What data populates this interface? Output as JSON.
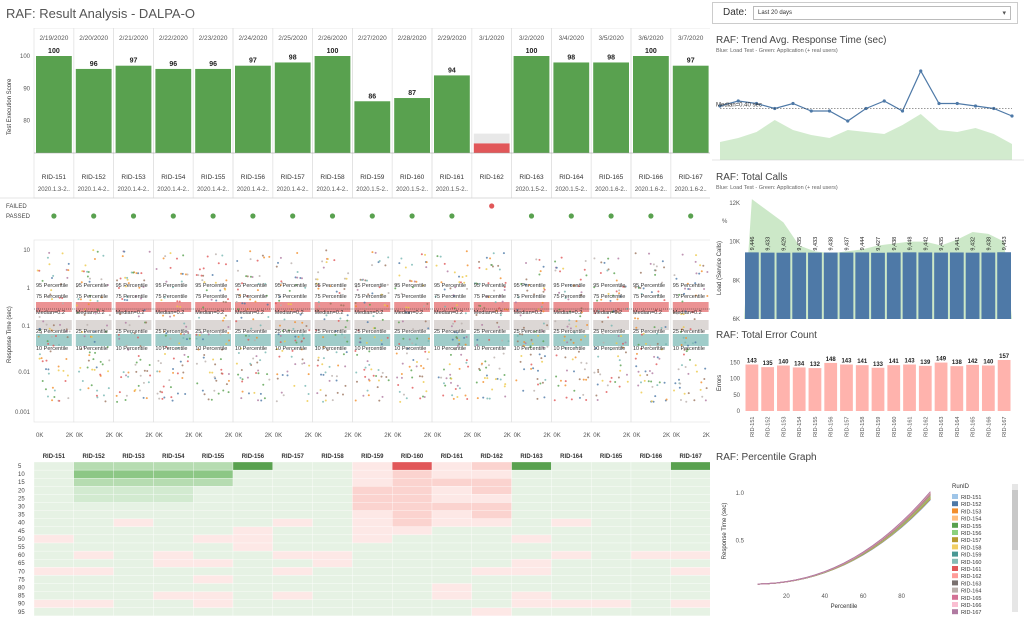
{
  "header": {
    "title": "RAF: Result Analysis - DALPA-O",
    "date_label": "Date:",
    "date_value": "Last 20 days"
  },
  "runs": [
    {
      "date": "2/19/2020",
      "id": "RID-151",
      "ver": "2020.1.3-2..",
      "score": 100,
      "status": "passed",
      "calls": 9446,
      "errors": 143
    },
    {
      "date": "2/20/2020",
      "id": "RID-152",
      "ver": "2020.1.4-2..",
      "score": 96,
      "status": "passed",
      "calls": 9433,
      "errors": 135
    },
    {
      "date": "2/21/2020",
      "id": "RID-153",
      "ver": "2020.1.4-2..",
      "score": 97,
      "status": "passed",
      "calls": 9429,
      "errors": 140
    },
    {
      "date": "2/22/2020",
      "id": "RID-154",
      "ver": "2020.1.4-2..",
      "score": 96,
      "status": "passed",
      "calls": 9435,
      "errors": 134
    },
    {
      "date": "2/23/2020",
      "id": "RID-155",
      "ver": "2020.1.4-2..",
      "score": 96,
      "status": "passed",
      "calls": 9433,
      "errors": 132
    },
    {
      "date": "2/24/2020",
      "id": "RID-156",
      "ver": "2020.1.4-2..",
      "score": 97,
      "status": "passed",
      "calls": 9438,
      "errors": 148
    },
    {
      "date": "2/25/2020",
      "id": "RID-157",
      "ver": "2020.1.4-2..",
      "score": 98,
      "status": "passed",
      "calls": 9437,
      "errors": 143
    },
    {
      "date": "2/26/2020",
      "id": "RID-158",
      "ver": "2020.1.4-2..",
      "score": 100,
      "status": "passed",
      "calls": 9444,
      "errors": 141
    },
    {
      "date": "2/27/2020",
      "id": "RID-159",
      "ver": "2020.1.5-2..",
      "score": 86,
      "status": "passed",
      "calls": 9427,
      "errors": 133
    },
    {
      "date": "2/28/2020",
      "id": "RID-160",
      "ver": "2020.1.5-2..",
      "score": 87,
      "status": "passed",
      "calls": 9438,
      "errors": 141
    },
    {
      "date": "2/29/2020",
      "id": "RID-161",
      "ver": "2020.1.5-2..",
      "score": 94,
      "status": "passed",
      "calls": 9448,
      "errors": 143
    },
    {
      "date": "3/1/2020",
      "id": "RID-162",
      "ver": "",
      "score": 73,
      "status": "failed",
      "calls": 9442,
      "errors": 139
    },
    {
      "date": "3/2/2020",
      "id": "RID-163",
      "ver": "2020.1.5-2..",
      "score": 100,
      "status": "passed",
      "calls": 9435,
      "errors": 149
    },
    {
      "date": "3/4/2020",
      "id": "RID-164",
      "ver": "2020.1.5-2..",
      "score": 98,
      "status": "passed",
      "calls": 9441,
      "errors": 138
    },
    {
      "date": "3/5/2020",
      "id": "RID-165",
      "ver": "2020.1.6-2..",
      "score": 98,
      "status": "passed",
      "calls": 9432,
      "errors": 142
    },
    {
      "date": "3/6/2020",
      "id": "RID-166",
      "ver": "2020.1.6-2..",
      "score": 100,
      "status": "passed",
      "calls": 9438,
      "errors": 140
    },
    {
      "date": "3/7/2020",
      "id": "RID-167",
      "ver": "2020.1.6-2..",
      "score": 97,
      "status": "passed",
      "calls": 9453,
      "errors": 157
    }
  ],
  "score_chart": {
    "ylabel": "Test Execution Score",
    "yticks": [
      80,
      90,
      100
    ],
    "status_labels": [
      "FAILED",
      "PASSED"
    ]
  },
  "scatter": {
    "ylabel": "Response Time (sec)",
    "yticks": [
      "10",
      "1",
      "0.1",
      "0.01",
      "0.001"
    ],
    "xticks": [
      "0K",
      "2K"
    ],
    "bands": [
      "95 Percentile",
      "75 Percentile",
      "Median=0.2",
      "25 Percentile",
      "10 Percentile"
    ]
  },
  "heatmap": {
    "rows": [
      5,
      10,
      15,
      20,
      25,
      30,
      35,
      40,
      45,
      50,
      55,
      60,
      65,
      70,
      75,
      80,
      85,
      90,
      95
    ]
  },
  "trend": {
    "title": "RAF: Trend Avg. Response Time (sec)",
    "subtitle": "Blue: Load Test - Green: Application (+ real users)",
    "median_label": "Median=0.40 sec",
    "values": [
      0.41,
      0.43,
      0.42,
      0.4,
      0.42,
      0.39,
      0.39,
      0.35,
      0.4,
      0.43,
      0.39,
      0.55,
      0.42,
      0.42,
      0.41,
      0.4,
      0.37
    ]
  },
  "total_calls": {
    "title": "RAF: Total Calls",
    "subtitle": "Blue: Load Test - Green: Application (+ real users)",
    "ylabel": "Load (Service Calls)",
    "yticks": [
      "12K",
      "10K",
      "8K",
      "6K"
    ],
    "pct": "%"
  },
  "errors": {
    "title": "RAF: Total Error Count",
    "ylabel": "Errors",
    "yticks": [
      150,
      100,
      50,
      0
    ]
  },
  "percentile": {
    "title": "RAF: Percentile Graph",
    "xlabel": "Percentile",
    "ylabel": "Response Time (sec)",
    "yticks": [
      "1.0",
      "0.5"
    ],
    "xticks": [
      "20",
      "40",
      "60",
      "80"
    ],
    "legend_title": "RunID"
  },
  "colors": {
    "green": "#59a14f",
    "red": "#e15759",
    "blue": "#4e79a7",
    "pink": "#ffb3ad",
    "lightgreen": "#c7e6c2"
  }
}
